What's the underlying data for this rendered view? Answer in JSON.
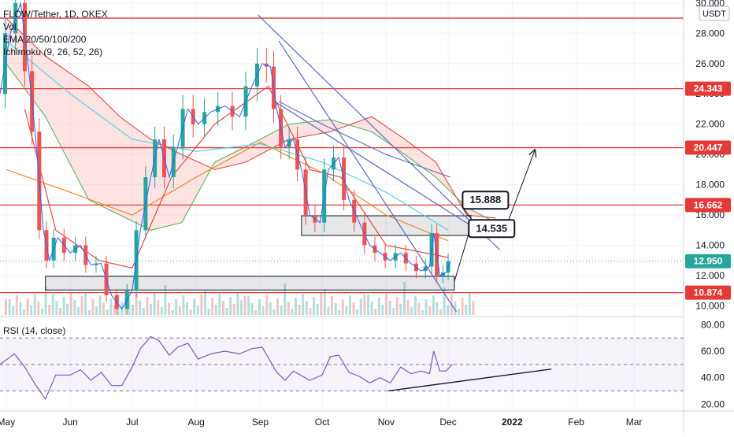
{
  "header": {
    "title": "FLOW/Tether, 1D, OKEX",
    "indicator_vol": "Vol",
    "indicator_ema": "EMA 20/50/100/200",
    "indicator_ichimoku": "Ichimoku (9, 26, 52, 26)"
  },
  "rsi_panel": {
    "label": "RSI (14, close)"
  },
  "chart_data": [
    {
      "type": "candlestick",
      "title": "FLOW/Tether, 1D, OKEX",
      "currency": "USDT",
      "y_ticks": [
        10,
        12,
        14,
        16,
        18,
        20,
        22,
        24,
        26,
        28,
        30
      ],
      "y_tick_labels": [
        "10.000",
        "12.000",
        "14.000",
        "16.000",
        "18.000",
        "20.000",
        "22.000",
        "24.000",
        "26.000",
        "28.000",
        "30.000"
      ],
      "ylim": [
        9.4,
        30.2
      ],
      "x_labels": [
        "May",
        "Jun",
        "Jul",
        "Aug",
        "Sep",
        "Oct",
        "Nov",
        "Dec",
        "2022",
        "Feb",
        "Mar"
      ],
      "x_dates": [
        "2021-05-01",
        "2021-06-01",
        "2021-07-01",
        "2021-08-01",
        "2021-09-01",
        "2021-10-01",
        "2021-11-01",
        "2021-12-01",
        "2022-01-01",
        "2022-02-01",
        "2022-03-01"
      ],
      "x_range": [
        "2021-04-28",
        "2022-03-25"
      ],
      "last_price": "12.950",
      "horizontal_levels": [
        {
          "value": 29.0,
          "label": ""
        },
        {
          "value": 24.343,
          "label": "24.343"
        },
        {
          "value": 20.447,
          "label": "20.447"
        },
        {
          "value": 16.662,
          "label": "16.662"
        },
        {
          "value": 10.874,
          "label": "10.874"
        }
      ],
      "support_zones": [
        {
          "from": "2021-05-20",
          "to": "2021-12-04",
          "low": 11.05,
          "high": 11.95
        },
        {
          "from": "2021-09-21",
          "to": "2021-12-12",
          "low": 14.65,
          "high": 15.95
        }
      ],
      "annotations": [
        {
          "text": "15.888",
          "date": "2021-12-08",
          "value": 15.888
        },
        {
          "text": "14.535",
          "date": "2021-12-11",
          "value": 14.535
        }
      ],
      "trendlines": [
        {
          "from": [
            "2021-08-31",
            29.2
          ],
          "to": [
            "2021-12-26",
            13.7
          ]
        },
        {
          "from": [
            "2021-09-08",
            23.5
          ],
          "to": [
            "2021-12-12",
            15.3
          ]
        },
        {
          "from": [
            "2021-09-10",
            27.5
          ],
          "to": [
            "2021-12-05",
            9.6
          ]
        }
      ],
      "projection_path": [
        [
          "2021-12-04",
          11.6
        ],
        [
          "2021-12-13",
          15.7
        ],
        [
          "2021-12-19",
          15.5
        ],
        [
          "2021-12-29",
          15.2
        ],
        [
          "2022-01-12",
          20.3
        ]
      ],
      "close_series": [
        [
          "2021-04-28",
          24.0
        ],
        [
          "2021-05-03",
          28.0
        ],
        [
          "2021-05-08",
          30.0
        ],
        [
          "2021-05-12",
          25.5
        ],
        [
          "2021-05-15",
          21.5
        ],
        [
          "2021-05-19",
          15.0
        ],
        [
          "2021-05-22",
          13.0
        ],
        [
          "2021-05-26",
          14.5
        ],
        [
          "2021-06-01",
          13.5
        ],
        [
          "2021-06-06",
          14.0
        ],
        [
          "2021-06-11",
          12.7
        ],
        [
          "2021-06-16",
          12.8
        ],
        [
          "2021-06-21",
          10.7
        ],
        [
          "2021-06-26",
          9.8
        ],
        [
          "2021-07-01",
          11.0
        ],
        [
          "2021-07-05",
          15.0
        ],
        [
          "2021-07-10",
          18.5
        ],
        [
          "2021-07-14",
          21.0
        ],
        [
          "2021-07-19",
          18.5
        ],
        [
          "2021-07-23",
          20.5
        ],
        [
          "2021-07-28",
          23.0
        ],
        [
          "2021-08-02",
          22.0
        ],
        [
          "2021-08-08",
          22.8
        ],
        [
          "2021-08-15",
          23.2
        ],
        [
          "2021-08-22",
          22.5
        ],
        [
          "2021-08-28",
          24.5
        ],
        [
          "2021-09-02",
          26.0
        ],
        [
          "2021-09-06",
          25.8
        ],
        [
          "2021-09-09",
          23.0
        ],
        [
          "2021-09-13",
          20.5
        ],
        [
          "2021-09-17",
          21.0
        ],
        [
          "2021-09-21",
          19.0
        ],
        [
          "2021-09-25",
          16.0
        ],
        [
          "2021-09-30",
          15.5
        ],
        [
          "2021-10-04",
          19.0
        ],
        [
          "2021-10-09",
          19.8
        ],
        [
          "2021-10-14",
          17.0
        ],
        [
          "2021-10-19",
          15.5
        ],
        [
          "2021-10-24",
          14.0
        ],
        [
          "2021-10-29",
          13.5
        ],
        [
          "2021-11-03",
          13.0
        ],
        [
          "2021-11-08",
          13.5
        ],
        [
          "2021-11-13",
          12.8
        ],
        [
          "2021-11-18",
          12.3
        ],
        [
          "2021-11-22",
          12.6
        ],
        [
          "2021-11-24",
          14.8
        ],
        [
          "2021-11-27",
          12.0
        ],
        [
          "2021-11-30",
          12.2
        ],
        [
          "2021-12-02",
          12.95
        ]
      ],
      "ema_series": [
        {
          "color": "#f57f17",
          "points": [
            [
              "2021-05-01",
              19.0
            ],
            [
              "2021-06-01",
              17.5
            ],
            [
              "2021-07-01",
              16.0
            ],
            [
              "2021-08-01",
              18.5
            ],
            [
              "2021-09-01",
              20.8
            ],
            [
              "2021-10-01",
              18.8
            ],
            [
              "2021-11-01",
              16.0
            ],
            [
              "2021-12-01",
              14.3
            ]
          ]
        },
        {
          "color": "#4dd0e1",
          "points": [
            [
              "2021-05-01",
              27.5
            ],
            [
              "2021-06-01",
              24.0
            ],
            [
              "2021-07-01",
              21.0
            ],
            [
              "2021-08-01",
              20.2
            ],
            [
              "2021-09-01",
              20.7
            ],
            [
              "2021-10-01",
              19.5
            ],
            [
              "2021-11-01",
              17.5
            ],
            [
              "2021-12-01",
              15.0
            ]
          ]
        },
        {
          "color": "#5c6bc0",
          "points": [
            [
              "2021-09-10",
              23.5
            ],
            [
              "2021-10-01",
              22.0
            ],
            [
              "2021-11-01",
              20.0
            ],
            [
              "2021-12-02",
              18.5
            ]
          ]
        },
        {
          "color": "#e53935",
          "points": [
            [
              "2021-05-10",
              23.0
            ],
            [
              "2021-05-25",
              15.0
            ],
            [
              "2021-06-15",
              13.0
            ],
            [
              "2021-07-01",
              12.5
            ],
            [
              "2021-07-20",
              18.5
            ],
            [
              "2021-08-10",
              22.0
            ],
            [
              "2021-09-05",
              24.5
            ],
            [
              "2021-09-25",
              19.0
            ],
            [
              "2021-10-10",
              18.5
            ],
            [
              "2021-11-01",
              14.0
            ],
            [
              "2021-12-01",
              13.2
            ]
          ]
        }
      ],
      "ichimoku_span_a": [
        [
          "2021-05-01",
          26.0
        ],
        [
          "2021-05-20",
          22.5
        ],
        [
          "2021-06-10",
          17.0
        ],
        [
          "2021-06-25",
          16.0
        ],
        [
          "2021-07-10",
          15.0
        ],
        [
          "2021-07-25",
          15.5
        ],
        [
          "2021-08-10",
          19.5
        ],
        [
          "2021-08-25",
          20.5
        ],
        [
          "2021-09-15",
          22.0
        ],
        [
          "2021-10-05",
          22.3
        ],
        [
          "2021-10-25",
          21.5
        ],
        [
          "2021-11-10",
          20.0
        ],
        [
          "2021-11-25",
          18.5
        ],
        [
          "2021-12-10",
          16.5
        ],
        [
          "2021-12-24",
          15.5
        ]
      ],
      "ichimoku_span_b": [
        [
          "2021-05-01",
          29.0
        ],
        [
          "2021-05-20",
          26.5
        ],
        [
          "2021-06-10",
          24.5
        ],
        [
          "2021-06-25",
          22.5
        ],
        [
          "2021-07-10",
          21.0
        ],
        [
          "2021-07-25",
          20.0
        ],
        [
          "2021-08-10",
          19.0
        ],
        [
          "2021-08-25",
          19.5
        ],
        [
          "2021-09-15",
          21.0
        ],
        [
          "2021-10-05",
          21.5
        ],
        [
          "2021-10-25",
          22.5
        ],
        [
          "2021-11-10",
          21.0
        ],
        [
          "2021-11-25",
          19.5
        ],
        [
          "2021-12-10",
          16.0
        ],
        [
          "2021-12-24",
          15.8
        ]
      ]
    },
    {
      "type": "line",
      "title": "RSI (14, close)",
      "y_ticks": [
        20,
        40,
        60,
        80
      ],
      "y_tick_labels": [
        "20.00",
        "40.00",
        "60.00",
        "80.00"
      ],
      "ylim": [
        16,
        85
      ],
      "bands": [
        30,
        50,
        70
      ],
      "rsi_series": [
        [
          "2021-04-28",
          50
        ],
        [
          "2021-05-05",
          58
        ],
        [
          "2021-05-10",
          48
        ],
        [
          "2021-05-15",
          35
        ],
        [
          "2021-05-20",
          24
        ],
        [
          "2021-05-25",
          42
        ],
        [
          "2021-06-01",
          42
        ],
        [
          "2021-06-06",
          46
        ],
        [
          "2021-06-11",
          38
        ],
        [
          "2021-06-16",
          44
        ],
        [
          "2021-06-21",
          34
        ],
        [
          "2021-06-26",
          34
        ],
        [
          "2021-07-01",
          48
        ],
        [
          "2021-07-05",
          62
        ],
        [
          "2021-07-10",
          71
        ],
        [
          "2021-07-14",
          68
        ],
        [
          "2021-07-19",
          57
        ],
        [
          "2021-07-23",
          63
        ],
        [
          "2021-07-28",
          66
        ],
        [
          "2021-08-02",
          54
        ],
        [
          "2021-08-08",
          58
        ],
        [
          "2021-08-15",
          60
        ],
        [
          "2021-08-22",
          58
        ],
        [
          "2021-08-28",
          62
        ],
        [
          "2021-09-02",
          63
        ],
        [
          "2021-09-09",
          44
        ],
        [
          "2021-09-13",
          38
        ],
        [
          "2021-09-17",
          45
        ],
        [
          "2021-09-25",
          38
        ],
        [
          "2021-10-01",
          42
        ],
        [
          "2021-10-05",
          56
        ],
        [
          "2021-10-09",
          57
        ],
        [
          "2021-10-14",
          44
        ],
        [
          "2021-10-19",
          41
        ],
        [
          "2021-10-24",
          36
        ],
        [
          "2021-10-29",
          40
        ],
        [
          "2021-11-03",
          36
        ],
        [
          "2021-11-08",
          48
        ],
        [
          "2021-11-13",
          43
        ],
        [
          "2021-11-18",
          45
        ],
        [
          "2021-11-22",
          43
        ],
        [
          "2021-11-24",
          60
        ],
        [
          "2021-11-27",
          45
        ],
        [
          "2021-11-30",
          45
        ],
        [
          "2021-12-03",
          50
        ]
      ],
      "trendline": {
        "from": [
          "2021-11-02",
          30
        ],
        "to": [
          "2022-01-20",
          46.5
        ]
      }
    }
  ]
}
